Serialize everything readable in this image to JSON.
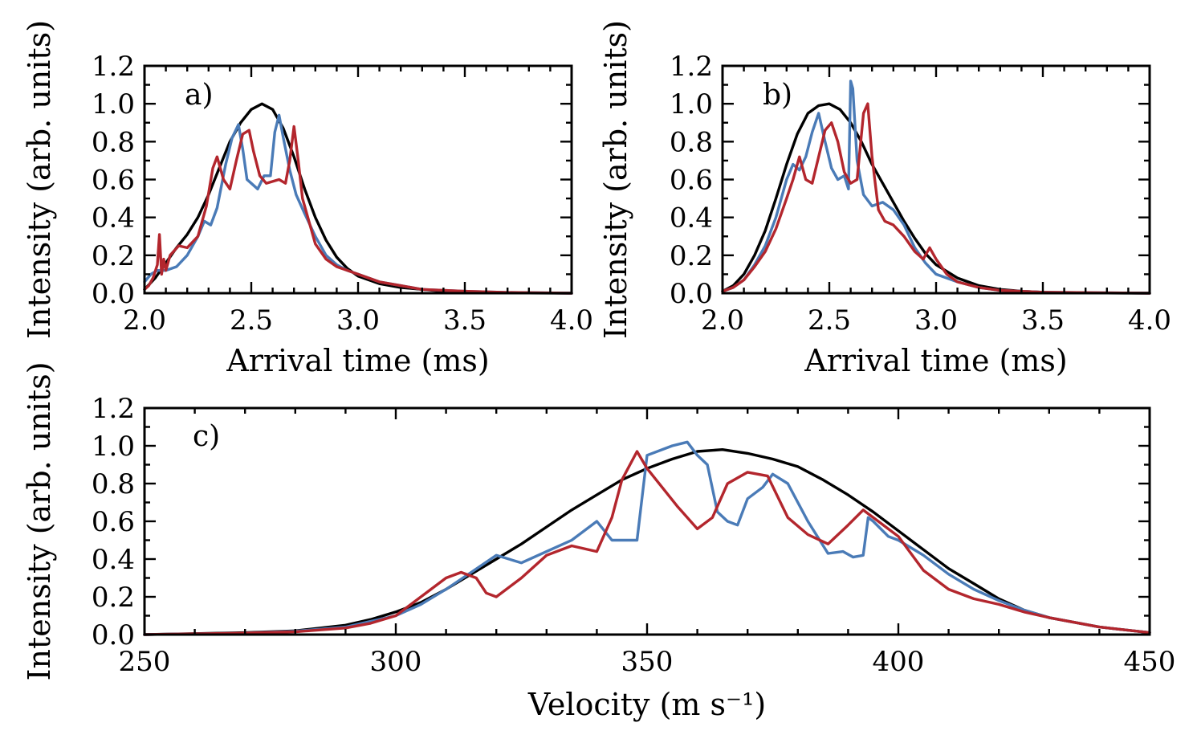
{
  "colors": {
    "black": "#000000",
    "blue": "#4a7bb7",
    "red": "#b3262d"
  },
  "chart_data": [
    {
      "id": "a",
      "type": "line",
      "panel_label": "a)",
      "xlabel": "Arrival time (ms)",
      "ylabel": "Intensity (arb. units)",
      "xlim": [
        2.0,
        4.0
      ],
      "ylim": [
        0.0,
        1.2
      ],
      "xticks": [
        2.0,
        2.5,
        3.0,
        3.5,
        4.0
      ],
      "xtick_labels": [
        "2.0",
        "2.5",
        "3.0",
        "3.5",
        "4.0"
      ],
      "yticks": [
        0.0,
        0.2,
        0.4,
        0.6,
        0.8,
        1.0,
        1.2
      ],
      "ytick_labels": [
        "0.0",
        "0.2",
        "0.4",
        "0.6",
        "0.8",
        "1.0",
        "1.2"
      ],
      "series": [
        {
          "name": "black",
          "color": "#000000",
          "x": [
            2.0,
            2.05,
            2.1,
            2.15,
            2.2,
            2.25,
            2.3,
            2.35,
            2.4,
            2.45,
            2.5,
            2.55,
            2.6,
            2.65,
            2.7,
            2.75,
            2.8,
            2.85,
            2.9,
            2.95,
            3.0,
            3.1,
            3.2,
            3.3,
            3.4,
            3.5,
            3.6,
            3.8,
            4.0
          ],
          "values": [
            0.02,
            0.08,
            0.16,
            0.24,
            0.31,
            0.4,
            0.52,
            0.66,
            0.8,
            0.9,
            0.97,
            1.0,
            0.97,
            0.87,
            0.72,
            0.55,
            0.4,
            0.28,
            0.19,
            0.13,
            0.09,
            0.05,
            0.03,
            0.02,
            0.01,
            0.006,
            0.003,
            0.001,
            0.0
          ]
        },
        {
          "name": "blue",
          "color": "#4a7bb7",
          "x": [
            2.0,
            2.03,
            2.06,
            2.1,
            2.15,
            2.2,
            2.25,
            2.28,
            2.31,
            2.34,
            2.38,
            2.41,
            2.44,
            2.46,
            2.48,
            2.5,
            2.53,
            2.56,
            2.59,
            2.61,
            2.63,
            2.65,
            2.68,
            2.71,
            2.75,
            2.8,
            2.85,
            2.9,
            2.95,
            3.0,
            3.1,
            3.2,
            3.3,
            3.5,
            3.7,
            4.0
          ],
          "values": [
            0.06,
            0.1,
            0.12,
            0.12,
            0.14,
            0.2,
            0.3,
            0.38,
            0.36,
            0.45,
            0.68,
            0.82,
            0.89,
            0.76,
            0.6,
            0.58,
            0.55,
            0.62,
            0.62,
            0.85,
            0.94,
            0.82,
            0.65,
            0.52,
            0.42,
            0.3,
            0.2,
            0.15,
            0.12,
            0.1,
            0.06,
            0.04,
            0.02,
            0.01,
            0.004,
            0.0
          ]
        },
        {
          "name": "red",
          "color": "#b3262d",
          "x": [
            2.0,
            2.02,
            2.04,
            2.06,
            2.07,
            2.08,
            2.09,
            2.1,
            2.12,
            2.16,
            2.2,
            2.25,
            2.29,
            2.32,
            2.34,
            2.37,
            2.4,
            2.43,
            2.46,
            2.49,
            2.51,
            2.54,
            2.57,
            2.6,
            2.63,
            2.66,
            2.68,
            2.7,
            2.72,
            2.74,
            2.77,
            2.8,
            2.85,
            2.9,
            2.95,
            3.0,
            3.1,
            3.2,
            3.3,
            3.5,
            3.7,
            4.0
          ],
          "values": [
            0.02,
            0.04,
            0.08,
            0.15,
            0.31,
            0.1,
            0.18,
            0.12,
            0.2,
            0.25,
            0.24,
            0.3,
            0.46,
            0.66,
            0.72,
            0.6,
            0.55,
            0.7,
            0.84,
            0.86,
            0.75,
            0.62,
            0.58,
            0.59,
            0.6,
            0.58,
            0.7,
            0.88,
            0.7,
            0.5,
            0.38,
            0.26,
            0.18,
            0.14,
            0.12,
            0.1,
            0.06,
            0.04,
            0.02,
            0.01,
            0.004,
            0.0
          ]
        }
      ]
    },
    {
      "id": "b",
      "type": "line",
      "panel_label": "b)",
      "xlabel": "Arrival time (ms)",
      "ylabel": "Intensity (arb. units)",
      "xlim": [
        2.0,
        4.0
      ],
      "ylim": [
        0.0,
        1.2
      ],
      "xticks": [
        2.0,
        2.5,
        3.0,
        3.5,
        4.0
      ],
      "xtick_labels": [
        "2.0",
        "2.5",
        "3.0",
        "3.5",
        "4.0"
      ],
      "yticks": [
        0.0,
        0.2,
        0.4,
        0.6,
        0.8,
        1.0,
        1.2
      ],
      "ytick_labels": [
        "0.0",
        "0.2",
        "0.4",
        "0.6",
        "0.8",
        "1.0",
        "1.2"
      ],
      "series": [
        {
          "name": "black",
          "color": "#000000",
          "x": [
            2.0,
            2.05,
            2.1,
            2.15,
            2.2,
            2.25,
            2.3,
            2.35,
            2.4,
            2.45,
            2.5,
            2.55,
            2.6,
            2.65,
            2.7,
            2.75,
            2.8,
            2.85,
            2.9,
            2.95,
            3.0,
            3.1,
            3.2,
            3.3,
            3.4,
            3.5,
            3.6,
            3.8,
            4.0
          ],
          "values": [
            0.01,
            0.04,
            0.1,
            0.2,
            0.33,
            0.5,
            0.68,
            0.84,
            0.95,
            0.99,
            1.0,
            0.97,
            0.9,
            0.8,
            0.68,
            0.58,
            0.48,
            0.38,
            0.29,
            0.21,
            0.15,
            0.08,
            0.04,
            0.02,
            0.01,
            0.005,
            0.002,
            0.001,
            0.0
          ]
        },
        {
          "name": "blue",
          "color": "#4a7bb7",
          "x": [
            2.0,
            2.05,
            2.1,
            2.15,
            2.2,
            2.25,
            2.3,
            2.33,
            2.36,
            2.39,
            2.42,
            2.45,
            2.48,
            2.51,
            2.54,
            2.57,
            2.59,
            2.6,
            2.61,
            2.63,
            2.64,
            2.66,
            2.7,
            2.75,
            2.8,
            2.85,
            2.9,
            2.95,
            3.0,
            3.1,
            3.2,
            3.3,
            3.5,
            4.0
          ],
          "values": [
            0.01,
            0.03,
            0.07,
            0.15,
            0.25,
            0.4,
            0.6,
            0.68,
            0.65,
            0.72,
            0.85,
            0.95,
            0.8,
            0.66,
            0.6,
            0.62,
            0.55,
            1.12,
            1.08,
            0.7,
            0.64,
            0.52,
            0.46,
            0.48,
            0.44,
            0.36,
            0.24,
            0.16,
            0.1,
            0.06,
            0.03,
            0.015,
            0.005,
            0.0
          ]
        },
        {
          "name": "red",
          "color": "#b3262d",
          "x": [
            2.0,
            2.05,
            2.1,
            2.15,
            2.2,
            2.25,
            2.3,
            2.33,
            2.36,
            2.39,
            2.42,
            2.45,
            2.48,
            2.51,
            2.54,
            2.57,
            2.6,
            2.63,
            2.66,
            2.68,
            2.7,
            2.73,
            2.76,
            2.8,
            2.85,
            2.9,
            2.94,
            2.97,
            3.0,
            3.05,
            3.1,
            3.2,
            3.3,
            3.5,
            4.0
          ],
          "values": [
            0.01,
            0.03,
            0.07,
            0.14,
            0.22,
            0.34,
            0.5,
            0.6,
            0.72,
            0.6,
            0.58,
            0.72,
            0.86,
            0.9,
            0.8,
            0.64,
            0.58,
            0.6,
            0.95,
            1.0,
            0.72,
            0.44,
            0.38,
            0.36,
            0.3,
            0.22,
            0.18,
            0.24,
            0.18,
            0.1,
            0.06,
            0.03,
            0.015,
            0.005,
            0.0
          ]
        }
      ]
    },
    {
      "id": "c",
      "type": "line",
      "panel_label": "c)",
      "xlabel": "Velocity (m s⁻¹)",
      "ylabel": "Intensity (arb. units)",
      "xlim": [
        250,
        450
      ],
      "ylim": [
        0.0,
        1.2
      ],
      "xticks": [
        250,
        300,
        350,
        400,
        450
      ],
      "xtick_labels": [
        "250",
        "300",
        "350",
        "400",
        "450"
      ],
      "yticks": [
        0.0,
        0.2,
        0.4,
        0.6,
        0.8,
        1.0,
        1.2
      ],
      "ytick_labels": [
        "0.0",
        "0.2",
        "0.4",
        "0.6",
        "0.8",
        "1.0",
        "1.2"
      ],
      "series": [
        {
          "name": "black",
          "color": "#000000",
          "x": [
            250,
            260,
            270,
            280,
            290,
            295,
            300,
            305,
            310,
            315,
            320,
            325,
            330,
            335,
            340,
            345,
            350,
            355,
            360,
            365,
            370,
            375,
            380,
            385,
            390,
            395,
            400,
            405,
            410,
            415,
            420,
            425,
            430,
            440,
            450
          ],
          "values": [
            0.0,
            0.005,
            0.01,
            0.02,
            0.05,
            0.08,
            0.12,
            0.17,
            0.24,
            0.32,
            0.4,
            0.48,
            0.57,
            0.66,
            0.74,
            0.82,
            0.88,
            0.93,
            0.97,
            0.98,
            0.96,
            0.93,
            0.89,
            0.82,
            0.74,
            0.65,
            0.55,
            0.45,
            0.35,
            0.27,
            0.19,
            0.13,
            0.09,
            0.04,
            0.01
          ]
        },
        {
          "name": "blue",
          "color": "#4a7bb7",
          "x": [
            250,
            260,
            270,
            280,
            290,
            295,
            300,
            305,
            310,
            315,
            320,
            325,
            330,
            335,
            340,
            343,
            346,
            348,
            350,
            355,
            358,
            360,
            362,
            364,
            366,
            368,
            370,
            373,
            375,
            378,
            382,
            386,
            389,
            391,
            393,
            394,
            395,
            398,
            400,
            405,
            410,
            415,
            420,
            425,
            430,
            440,
            450
          ],
          "values": [
            0.0,
            0.004,
            0.008,
            0.018,
            0.04,
            0.07,
            0.1,
            0.16,
            0.24,
            0.33,
            0.42,
            0.38,
            0.44,
            0.5,
            0.6,
            0.5,
            0.5,
            0.5,
            0.95,
            1.0,
            1.02,
            0.95,
            0.9,
            0.65,
            0.6,
            0.58,
            0.72,
            0.78,
            0.85,
            0.8,
            0.6,
            0.43,
            0.44,
            0.41,
            0.42,
            0.62,
            0.6,
            0.52,
            0.5,
            0.42,
            0.32,
            0.24,
            0.18,
            0.13,
            0.09,
            0.04,
            0.01
          ]
        },
        {
          "name": "red",
          "color": "#b3262d",
          "x": [
            250,
            260,
            270,
            280,
            290,
            295,
            300,
            305,
            310,
            313,
            316,
            318,
            320,
            325,
            330,
            335,
            340,
            343,
            345,
            348,
            350,
            353,
            356,
            360,
            363,
            366,
            370,
            374,
            378,
            382,
            386,
            390,
            393,
            396,
            400,
            405,
            410,
            415,
            420,
            425,
            430,
            440,
            450
          ],
          "values": [
            0.0,
            0.004,
            0.008,
            0.015,
            0.035,
            0.06,
            0.1,
            0.2,
            0.3,
            0.33,
            0.3,
            0.22,
            0.2,
            0.3,
            0.42,
            0.47,
            0.44,
            0.62,
            0.82,
            0.97,
            0.88,
            0.78,
            0.68,
            0.56,
            0.62,
            0.8,
            0.86,
            0.84,
            0.62,
            0.53,
            0.48,
            0.58,
            0.66,
            0.6,
            0.52,
            0.34,
            0.24,
            0.19,
            0.16,
            0.12,
            0.09,
            0.04,
            0.01
          ]
        }
      ]
    }
  ]
}
